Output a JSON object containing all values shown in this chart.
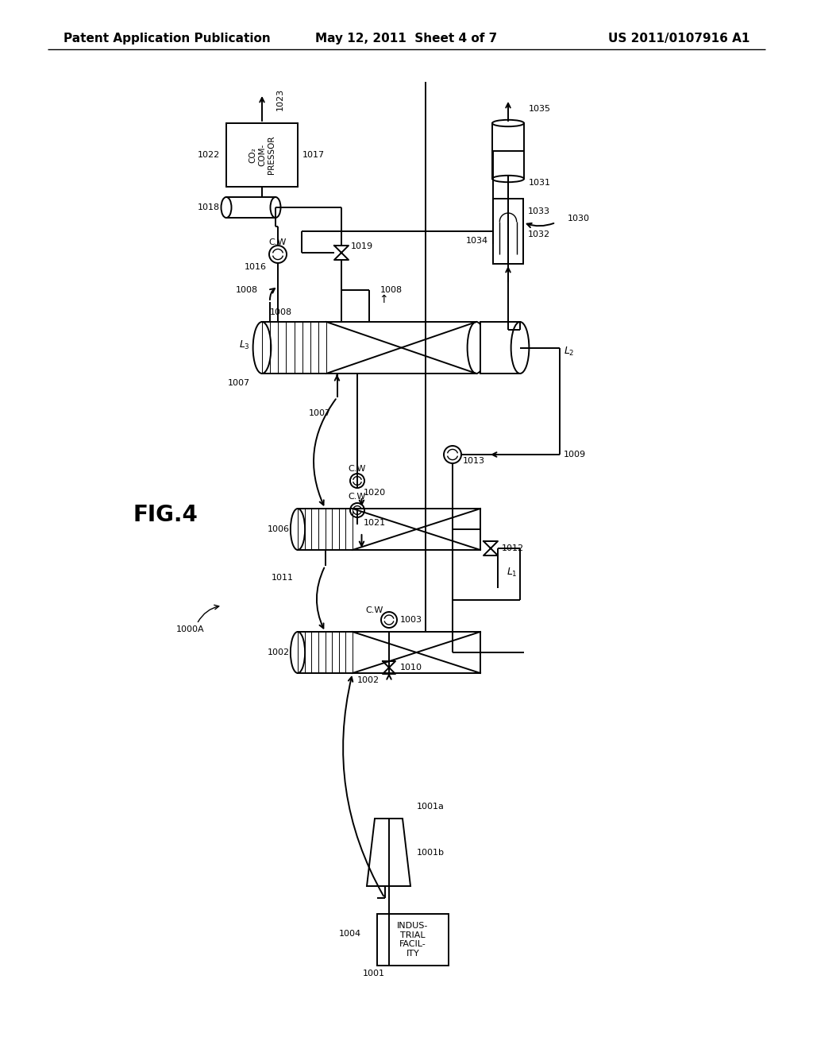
{
  "bg_color": "#ffffff",
  "header_left": "Patent Application Publication",
  "header_center": "May 12, 2011  Sheet 4 of 7",
  "header_right": "US 2011/0107916 A1"
}
